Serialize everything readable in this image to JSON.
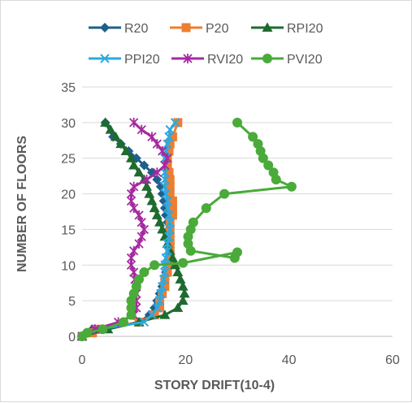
{
  "chart_data": {
    "type": "line",
    "title": "",
    "xlabel": "STORY DRIFT(10-4)",
    "ylabel": "NUMBER OF FLOORS",
    "xlim": [
      0,
      60
    ],
    "ylim": [
      0,
      35
    ],
    "xticks": [
      0,
      20,
      40,
      60
    ],
    "yticks": [
      0,
      5,
      10,
      15,
      20,
      25,
      30,
      35
    ],
    "grid": "horizontal",
    "legend_position": "top",
    "series": [
      {
        "name": "R20",
        "color": "#1f5f8b",
        "marker": "diamond",
        "x": [
          0,
          2,
          4,
          11,
          13,
          14,
          14.5,
          15,
          15.5,
          16,
          16.2,
          16.5,
          16.8,
          17,
          17,
          17,
          16.8,
          16.5,
          16.2,
          16,
          15.8,
          15.5,
          15.2,
          14.5,
          13.5,
          12,
          10.5,
          9,
          7.5,
          6,
          4.5
        ],
        "y": [
          0,
          1,
          1,
          2,
          3,
          4,
          5,
          6,
          7,
          8,
          9,
          10,
          11,
          12,
          13,
          14,
          15,
          16,
          17,
          18,
          19,
          20,
          21,
          22,
          23,
          24,
          25,
          26,
          27,
          28,
          30
        ]
      },
      {
        "name": "P20",
        "color": "#ed7d31",
        "marker": "square",
        "x": [
          0,
          2,
          3,
          11,
          14,
          15,
          15,
          15.5,
          16,
          16,
          16.5,
          16.5,
          17,
          17,
          17,
          17,
          17,
          17,
          17.5,
          17.5,
          17.5,
          17,
          17,
          17,
          16.8,
          16.5,
          16.5,
          16.8,
          17,
          17.5,
          18.5
        ],
        "y": [
          0,
          0.5,
          1,
          2,
          3,
          4,
          5,
          6,
          7,
          8,
          9,
          10,
          11,
          12,
          13,
          14,
          15,
          16,
          17,
          18,
          19,
          20,
          21,
          22,
          23,
          24,
          25,
          26,
          27,
          28,
          30
        ]
      },
      {
        "name": "RPI20",
        "color": "#1e6b2f",
        "marker": "triangle",
        "x": [
          0,
          5,
          11,
          16,
          18.5,
          19.5,
          19.8,
          19.5,
          19,
          18.5,
          18,
          17.5,
          17,
          16.5,
          16,
          15.5,
          15,
          14.5,
          14,
          13.5,
          13,
          12.5,
          12,
          11,
          10,
          9.5,
          8.5,
          7.5,
          6.5,
          5.5,
          4.5
        ],
        "y": [
          0,
          1,
          2,
          3,
          4,
          5,
          6,
          7,
          8,
          9,
          10,
          11,
          12,
          13,
          14,
          15,
          16,
          17,
          18,
          19,
          20,
          21,
          22,
          23,
          24,
          25,
          26,
          27,
          28,
          29,
          30
        ]
      },
      {
        "name": "PPI20",
        "color": "#2ea9df",
        "marker": "x",
        "x": [
          0,
          3,
          12,
          13.5,
          14.5,
          15,
          15.2,
          15.5,
          15.8,
          16,
          16,
          16.2,
          16.5,
          16.5,
          16.8,
          17,
          17,
          16.8,
          16.5,
          16.5,
          16.2,
          16,
          16,
          16,
          16,
          16,
          16.2,
          16.5,
          16.8,
          17,
          18
        ],
        "y": [
          0,
          1,
          2,
          3,
          4,
          5,
          6,
          7,
          8,
          9,
          10,
          11,
          12,
          13,
          14,
          15,
          16,
          17,
          18,
          19,
          20,
          21,
          22,
          23,
          24,
          25,
          26,
          27,
          28,
          29,
          30
        ]
      },
      {
        "name": "RVI20",
        "color": "#a52aa0",
        "marker": "star",
        "x": [
          0,
          2.5,
          7,
          10,
          10.5,
          10.5,
          10.5,
          10.5,
          10.2,
          10,
          9.5,
          9.5,
          10,
          11,
          11.5,
          12,
          11.5,
          11,
          10,
          9.5,
          9.5,
          10,
          12.5,
          14.5,
          16,
          16.5,
          15.5,
          14.5,
          13.5,
          11.5,
          10
        ],
        "y": [
          0,
          1,
          2,
          3,
          4,
          5,
          6,
          7,
          8,
          9,
          10,
          11,
          12,
          13,
          14,
          15,
          16,
          17,
          18,
          19,
          20,
          21,
          22,
          23,
          24,
          25,
          26,
          27,
          28,
          29,
          30
        ]
      },
      {
        "name": "PVI20",
        "color": "#4aaa3a",
        "marker": "circle",
        "x": [
          0,
          1,
          4,
          8,
          9.5,
          9.5,
          9.5,
          10,
          10.5,
          11,
          12,
          14,
          19.5,
          30,
          29.5,
          21,
          20.5,
          20.5,
          21,
          21.5,
          24,
          27.5,
          40.5,
          37.5,
          37,
          36,
          35,
          34.5,
          34,
          33,
          30
        ],
        "y": [
          0,
          0.5,
          1,
          2,
          3,
          4,
          5,
          6,
          7,
          8,
          9,
          10,
          10.3,
          11.8,
          11,
          12,
          13,
          14,
          15,
          16,
          18,
          20,
          21,
          22,
          23,
          24,
          25,
          26,
          27,
          28,
          30
        ]
      }
    ]
  }
}
